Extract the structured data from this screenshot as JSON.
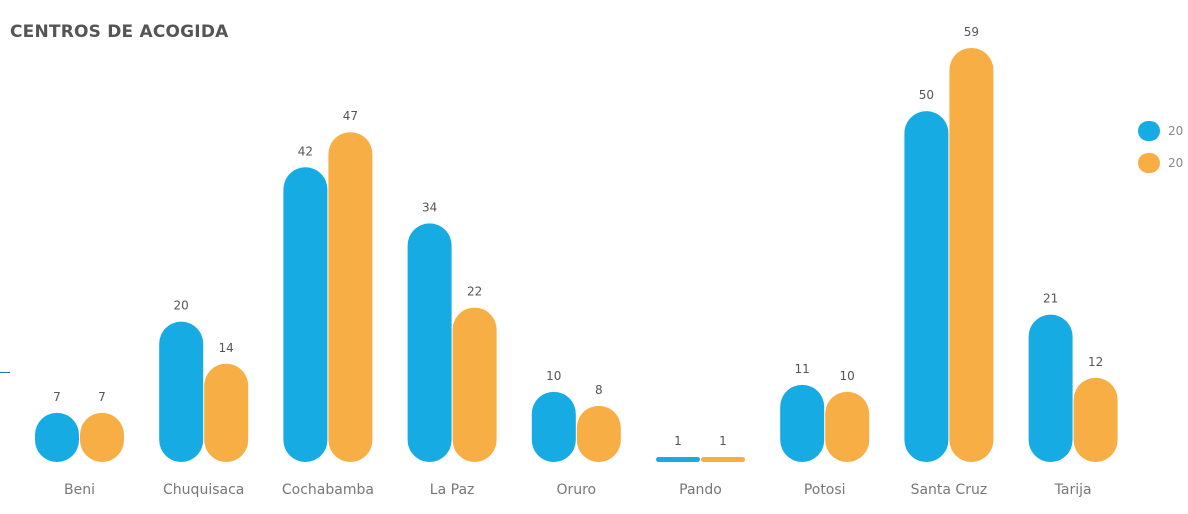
{
  "chart_data": {
    "type": "bar",
    "title": "CENTROS DE ACOGIDA",
    "categories": [
      "Beni",
      "Chuquisaca",
      "Cochabamba",
      "La Paz",
      "Oruro",
      "Pando",
      "Potosi",
      "Santa Cruz",
      "Tarija"
    ],
    "series": [
      {
        "name": "20",
        "color": "#16ace3",
        "values": [
          7,
          20,
          42,
          34,
          10,
          1,
          11,
          50,
          21
        ]
      },
      {
        "name": "20",
        "color": "#f7ae44",
        "values": [
          7,
          14,
          47,
          22,
          8,
          1,
          10,
          59,
          12
        ]
      }
    ],
    "ylim": [
      0,
      59
    ],
    "grid": false,
    "legend": "right"
  }
}
